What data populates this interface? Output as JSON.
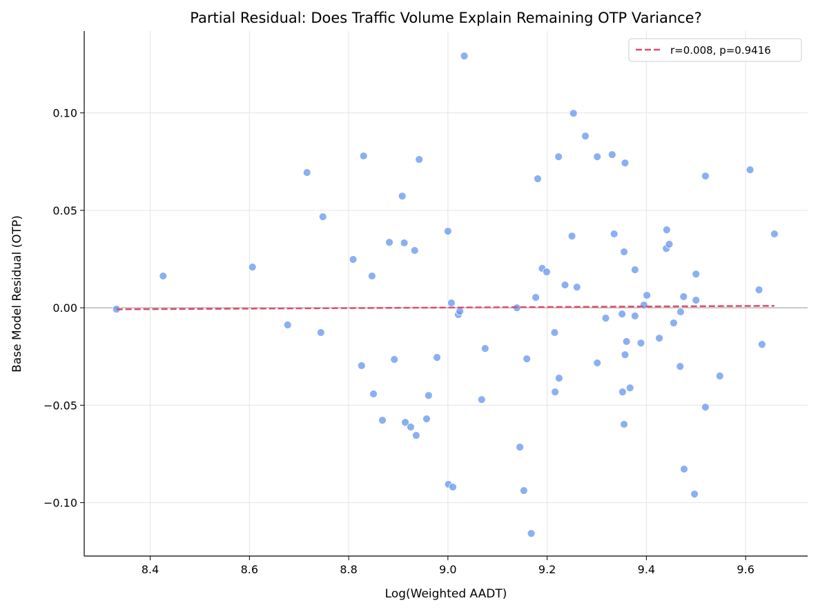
{
  "chart_data": {
    "type": "scatter",
    "title": "Partial Residual: Does Traffic Volume Explain Remaining OTP Variance?",
    "xlabel": "Log(Weighted AADT)",
    "ylabel": "Base Model Residual (OTP)",
    "xlim": [
      8.267,
      9.725
    ],
    "ylim": [
      -0.1274,
      0.142
    ],
    "xticks": [
      8.4,
      8.6,
      8.8,
      9.0,
      9.2,
      9.4,
      9.6
    ],
    "xtick_labels": [
      "8.4",
      "8.6",
      "8.8",
      "9.0",
      "9.2",
      "9.4",
      "9.6"
    ],
    "yticks": [
      0.1,
      0.05,
      0.0,
      -0.05,
      -0.1
    ],
    "ytick_labels": [
      "0.10",
      "0.05",
      "0.00",
      "−0.05",
      "−0.10"
    ],
    "grid": true,
    "zero_line": 0,
    "legend": {
      "placement": "top-right",
      "entries": [
        "r=0.008, p=0.9416"
      ]
    },
    "point_color": "#6495ED",
    "line_color": "#DC4C6E",
    "fit_line": {
      "x": [
        8.332,
        9.658
      ],
      "y": [
        -0.0008,
        0.001
      ]
    },
    "points": [
      [
        8.332,
        -0.0007
      ],
      [
        8.426,
        0.0163
      ],
      [
        8.606,
        0.0209
      ],
      [
        8.677,
        -0.0088
      ],
      [
        8.716,
        0.0694
      ],
      [
        8.744,
        -0.0127
      ],
      [
        8.748,
        0.0467
      ],
      [
        8.809,
        0.0248
      ],
      [
        8.826,
        -0.0297
      ],
      [
        8.83,
        0.0779
      ],
      [
        8.847,
        0.0163
      ],
      [
        8.85,
        -0.0442
      ],
      [
        8.868,
        -0.0577
      ],
      [
        8.882,
        0.0336
      ],
      [
        8.892,
        -0.0265
      ],
      [
        8.908,
        0.0573
      ],
      [
        8.912,
        0.0333
      ],
      [
        8.914,
        -0.0588
      ],
      [
        8.925,
        -0.0612
      ],
      [
        8.933,
        0.0294
      ],
      [
        8.936,
        -0.0655
      ],
      [
        8.942,
        0.0761
      ],
      [
        8.957,
        -0.057
      ],
      [
        8.961,
        -0.045
      ],
      [
        8.978,
        -0.0255
      ],
      [
        9.0,
        0.0393
      ],
      [
        9.001,
        -0.0906
      ],
      [
        9.007,
        0.0025
      ],
      [
        9.01,
        -0.092
      ],
      [
        9.021,
        -0.0035
      ],
      [
        9.024,
        -0.0018
      ],
      [
        9.033,
        0.1292
      ],
      [
        9.068,
        -0.0471
      ],
      [
        9.075,
        -0.0209
      ],
      [
        9.139,
        0.0
      ],
      [
        9.145,
        -0.0715
      ],
      [
        9.153,
        -0.0938
      ],
      [
        9.159,
        -0.0262
      ],
      [
        9.168,
        -0.1158
      ],
      [
        9.177,
        0.0053
      ],
      [
        9.181,
        0.0662
      ],
      [
        9.19,
        0.0202
      ],
      [
        9.199,
        0.0184
      ],
      [
        9.215,
        -0.0127
      ],
      [
        9.216,
        -0.0432
      ],
      [
        9.223,
        0.0775
      ],
      [
        9.224,
        -0.0361
      ],
      [
        9.236,
        0.0117
      ],
      [
        9.25,
        0.0368
      ],
      [
        9.253,
        0.0998
      ],
      [
        9.26,
        0.0106
      ],
      [
        9.277,
        0.0881
      ],
      [
        9.301,
        0.0775
      ],
      [
        9.301,
        -0.0283
      ],
      [
        9.318,
        -0.0053
      ],
      [
        9.331,
        0.0786
      ],
      [
        9.335,
        0.0379
      ],
      [
        9.351,
        -0.0032
      ],
      [
        9.352,
        -0.0432
      ],
      [
        9.355,
        0.0287
      ],
      [
        9.355,
        -0.0598
      ],
      [
        9.357,
        0.0743
      ],
      [
        9.357,
        -0.0241
      ],
      [
        9.36,
        -0.0173
      ],
      [
        9.367,
        -0.0411
      ],
      [
        9.377,
        0.0195
      ],
      [
        9.377,
        -0.0042
      ],
      [
        9.389,
        -0.0181
      ],
      [
        9.395,
        0.0014
      ],
      [
        9.401,
        0.0064
      ],
      [
        9.426,
        -0.0156
      ],
      [
        9.44,
        0.0304
      ],
      [
        9.441,
        0.04
      ],
      [
        9.446,
        0.0326
      ],
      [
        9.455,
        -0.0078
      ],
      [
        9.468,
        -0.0301
      ],
      [
        9.469,
        -0.0021
      ],
      [
        9.475,
        0.0057
      ],
      [
        9.476,
        -0.0828
      ],
      [
        9.497,
        -0.0956
      ],
      [
        9.5,
        0.0173
      ],
      [
        9.5,
        0.0039
      ],
      [
        9.519,
        0.0676
      ],
      [
        9.519,
        -0.051
      ],
      [
        9.548,
        -0.035
      ],
      [
        9.609,
        0.0708
      ],
      [
        9.627,
        0.0092
      ],
      [
        9.633,
        -0.0188
      ],
      [
        9.658,
        0.0379
      ]
    ]
  }
}
